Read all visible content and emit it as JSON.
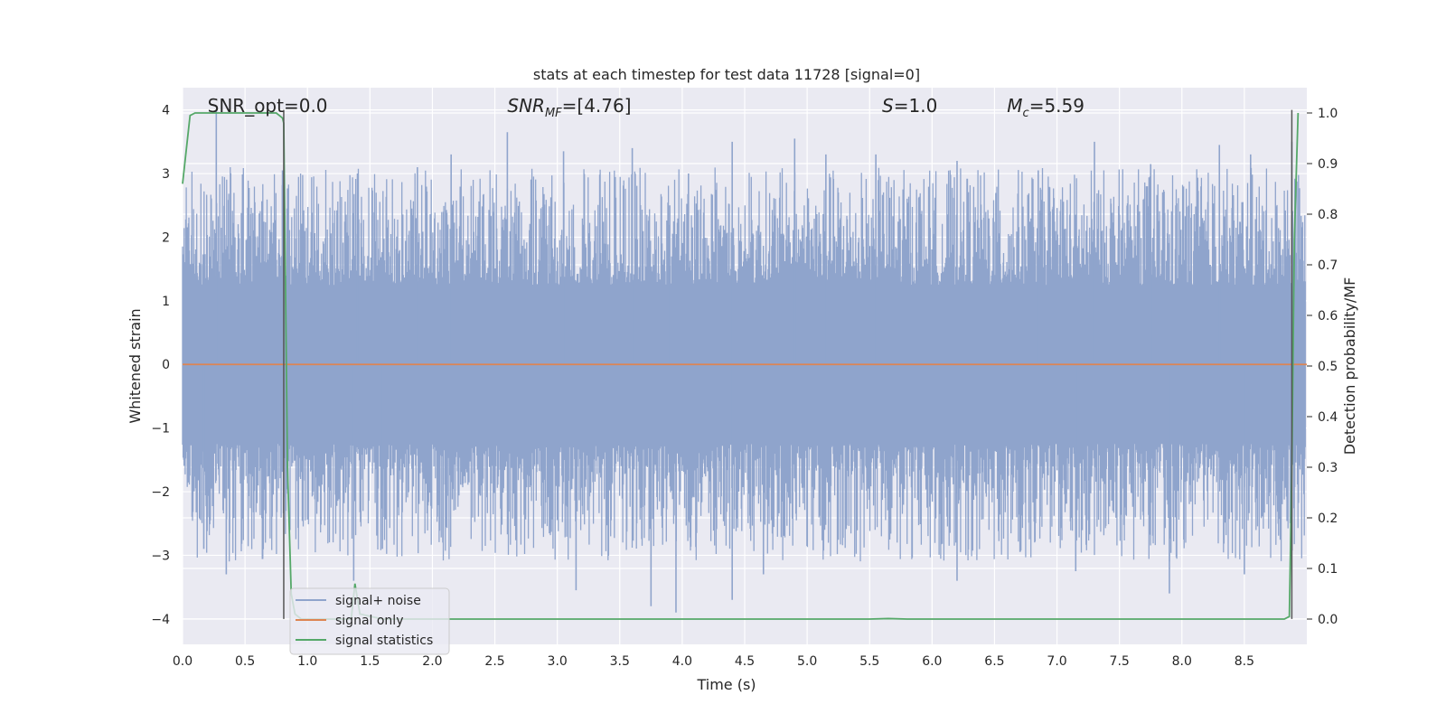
{
  "chart_data": {
    "type": "line",
    "title": "stats at each timestep for test data 11728 [signal=0]",
    "xlabel": "Time (s)",
    "ylabel": "Whitened strain",
    "y2label": "Detection probability/MF",
    "xlim": [
      0.0,
      9.0
    ],
    "ylim": [
      -4.4,
      4.35
    ],
    "y2lim": [
      -0.05,
      1.05
    ],
    "x_ticks": [
      "0.0",
      "0.5",
      "1.0",
      "1.5",
      "2.0",
      "2.5",
      "3.0",
      "3.5",
      "4.0",
      "4.5",
      "5.0",
      "5.5",
      "6.0",
      "6.5",
      "7.0",
      "7.5",
      "8.0",
      "8.5"
    ],
    "x_tick_values": [
      0.0,
      0.5,
      1.0,
      1.5,
      2.0,
      2.5,
      3.0,
      3.5,
      4.0,
      4.5,
      5.0,
      5.5,
      6.0,
      6.5,
      7.0,
      7.5,
      8.0,
      8.5
    ],
    "y_ticks": [
      "−4",
      "−3",
      "−2",
      "−1",
      "0",
      "1",
      "2",
      "3",
      "4"
    ],
    "y_tick_values": [
      -4,
      -3,
      -2,
      -1,
      0,
      1,
      2,
      3,
      4
    ],
    "y2_ticks": [
      "0.0",
      "0.1",
      "0.2",
      "0.3",
      "0.4",
      "0.5",
      "0.6",
      "0.7",
      "0.8",
      "0.9",
      "1.0"
    ],
    "y2_tick_values": [
      0.0,
      0.1,
      0.2,
      0.3,
      0.4,
      0.5,
      0.6,
      0.7,
      0.8,
      0.9,
      1.0
    ],
    "grid": true,
    "legend_position": "lower-left",
    "annotations": [
      {
        "text": "SNR_opt=0.0",
        "x": 0.2
      },
      {
        "text": "SNR",
        "sub": "MF",
        "rest": "=[4.76]",
        "x": 2.6
      },
      {
        "text": "S",
        "rest": "=1.0",
        "x": 5.6
      },
      {
        "text": "M",
        "sub": "c",
        "rest": "=5.59",
        "x": 6.6
      }
    ],
    "vlines": [
      0.81,
      8.88
    ],
    "noise_envelope": {
      "description": "strain envelope",
      "upper_typical": 2.2,
      "lower_typical": -2.2,
      "upper_peak": 4.0,
      "lower_peak": -3.9
    },
    "series": [
      {
        "name": "signal+ noise",
        "color": "#8fa4cc",
        "axis": "left",
        "peaks_x": [
          0.27,
          0.8,
          1.4,
          1.88,
          2.15,
          2.6,
          3.05,
          3.6,
          3.9,
          4.05,
          4.4,
          4.9,
          5.15,
          5.55,
          6.2,
          6.85,
          7.3,
          7.75,
          8.3,
          8.55,
          8.88
        ],
        "peaks_y": [
          4.0,
          3.05,
          3.0,
          3.1,
          3.3,
          3.65,
          3.35,
          3.4,
          2.5,
          3.0,
          3.5,
          3.55,
          3.3,
          3.3,
          3.2,
          3.05,
          3.5,
          3.15,
          3.45,
          3.3,
          3.5
        ],
        "troughs_x": [
          0.17,
          0.35,
          1.37,
          1.6,
          3.15,
          3.75,
          3.95,
          4.4,
          4.65,
          6.2,
          7.15,
          7.9,
          8.5
        ],
        "troughs_y": [
          -2.9,
          -3.3,
          -3.4,
          -2.9,
          -3.55,
          -3.8,
          -3.9,
          -3.7,
          -3.3,
          -3.4,
          -3.25,
          -3.6,
          -3.3
        ]
      },
      {
        "name": "signal only",
        "color": "#dd8452",
        "axis": "left",
        "x": [
          0.0,
          9.0
        ],
        "y": [
          0.0,
          0.0
        ]
      },
      {
        "name": "signal statistics",
        "color": "#55a868",
        "axis": "right",
        "x": [
          0.0,
          0.06,
          0.1,
          0.2,
          0.4,
          0.6,
          0.75,
          0.8,
          0.81,
          0.84,
          0.87,
          0.9,
          0.95,
          1.2,
          1.35,
          1.38,
          1.42,
          1.6,
          2.5,
          5.5,
          5.65,
          5.8,
          7.0,
          8.5,
          8.82,
          8.86,
          8.88,
          8.9,
          8.93
        ],
        "y": [
          0.86,
          0.995,
          1.0,
          1.0,
          1.0,
          1.0,
          1.0,
          0.99,
          0.98,
          0.3,
          0.05,
          0.01,
          0.0,
          0.0,
          0.0,
          0.07,
          0.01,
          0.0,
          0.0,
          0.0,
          0.001,
          0.0,
          0.0,
          0.0,
          0.0,
          0.005,
          0.3,
          0.75,
          1.0
        ]
      }
    ]
  }
}
